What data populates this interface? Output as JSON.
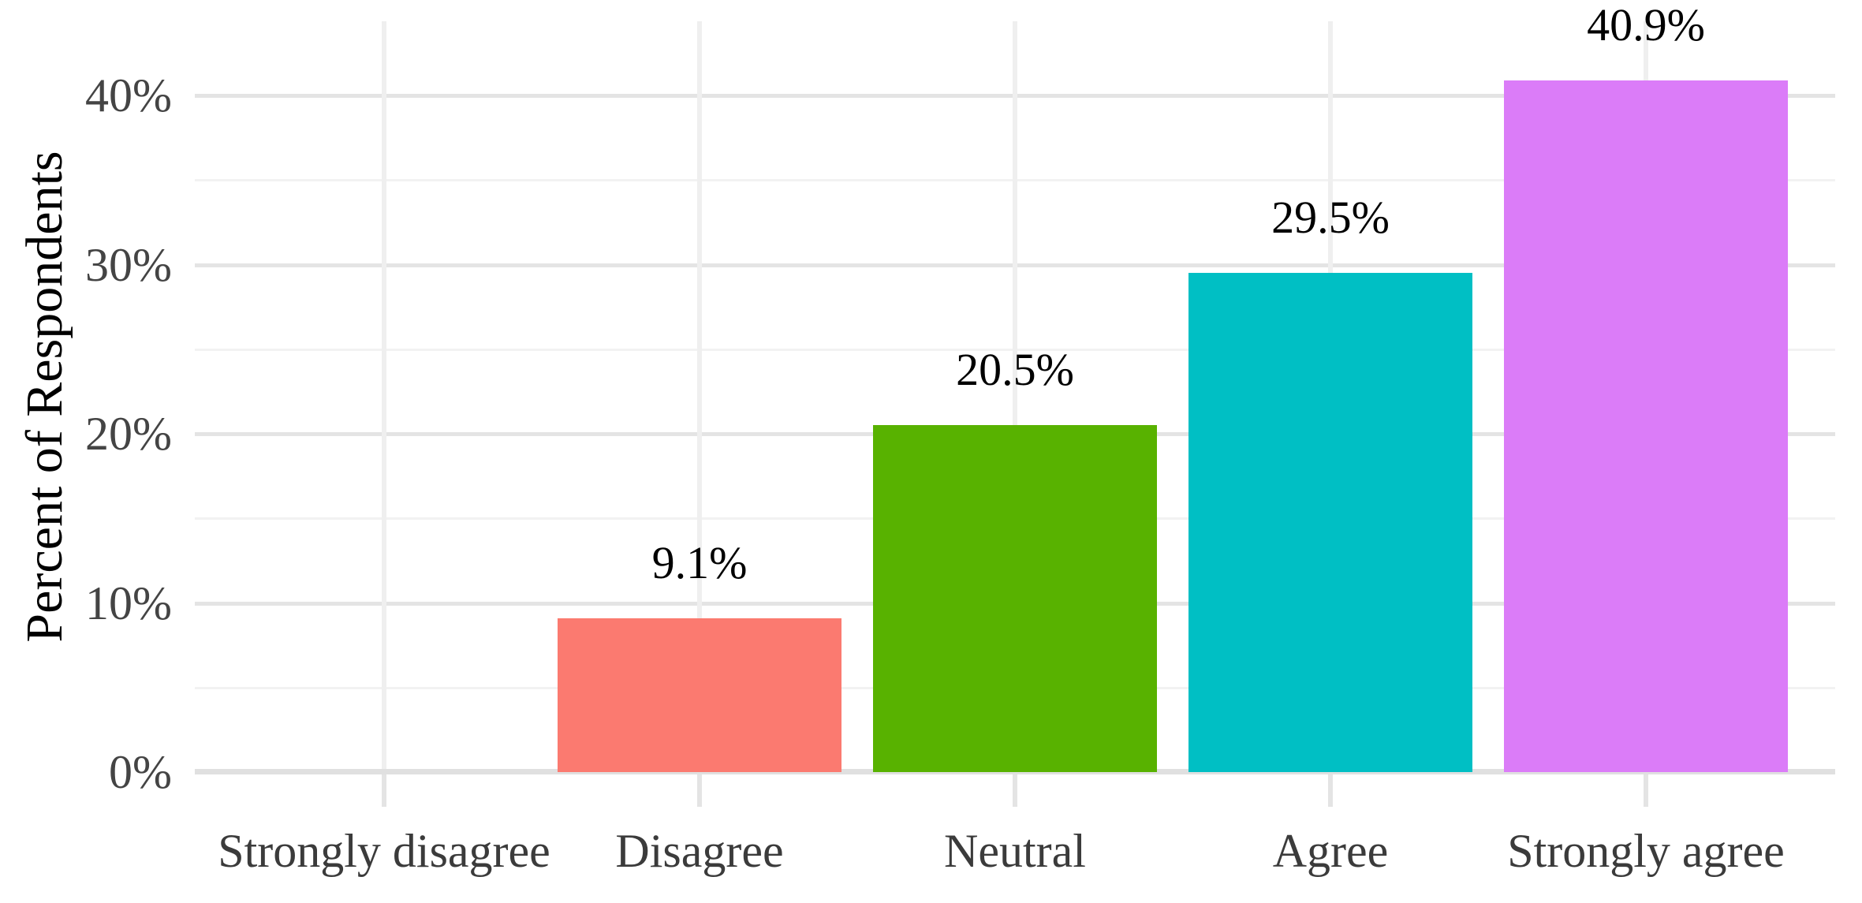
{
  "chart_data": {
    "type": "bar",
    "title": "",
    "xlabel": "",
    "ylabel": "Percent of Respondents",
    "categories": [
      "Strongly disagree",
      "Disagree",
      "Neutral",
      "Agree",
      "Strongly agree"
    ],
    "values": [
      0,
      9.1,
      20.5,
      29.5,
      40.9
    ],
    "value_labels": [
      "",
      "9.1%",
      "20.5%",
      "29.5%",
      "40.9%"
    ],
    "bar_colors": [
      null,
      "#FB7A70",
      "#58B200",
      "#00BFC4",
      "#DB7CF8"
    ],
    "y_ticks": [
      {
        "value": 0,
        "label": "0%"
      },
      {
        "value": 10,
        "label": "10%"
      },
      {
        "value": 20,
        "label": "20%"
      },
      {
        "value": 30,
        "label": "30%"
      },
      {
        "value": 40,
        "label": "40%"
      }
    ],
    "y_minor_ticks": [
      5,
      15,
      25,
      35
    ],
    "ylim": [
      0,
      44.4
    ],
    "grid": true,
    "legend": false,
    "colors": {
      "background": "#FFFFFF",
      "grid_major": "#E4E4E4",
      "grid_minor": "#F2F2F2",
      "grid_vertical": "#EFEFEF",
      "axis_line": "#E0E0E0",
      "axis_text": "#444444",
      "category_text": "#3b3b3b",
      "value_label_text": "#000000"
    }
  }
}
